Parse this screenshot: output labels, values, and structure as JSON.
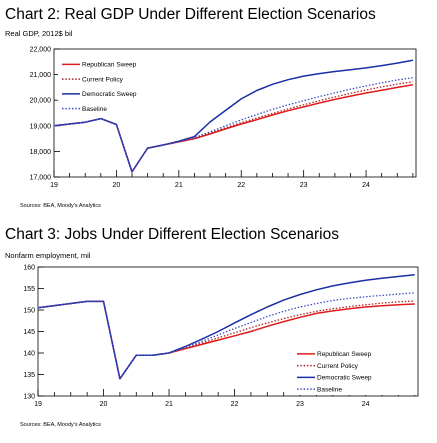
{
  "chart_data": [
    {
      "type": "line",
      "title": "Chart 2: Real GDP Under Different Election Scenarios",
      "subtitle": "Real GDP, 2012$ bil",
      "source": "Sources: BEA, Moody's Analytics",
      "x_tick_labels": [
        "19",
        "20",
        "21",
        "22",
        "23",
        "24"
      ],
      "ylim": [
        17000,
        22000
      ],
      "y_ticks": [
        "17,000",
        "18,000",
        "19,000",
        "20,000",
        "21,000",
        "22,000"
      ],
      "legend": "top-left",
      "grid": false,
      "x": [
        2019.0,
        2019.5,
        2019.75,
        2020.0,
        2020.25,
        2020.5,
        2020.75,
        2021.0,
        2021.25,
        2021.5,
        2021.75,
        2022.0,
        2022.25,
        2022.5,
        2022.75,
        2023.0,
        2023.25,
        2023.5,
        2023.75,
        2024.0,
        2024.25,
        2024.5,
        2024.75
      ],
      "series": [
        {
          "name": "Republican Sweep",
          "color": "#e01b1b",
          "dash": "solid",
          "values": [
            19000,
            19140,
            19280,
            19050,
            17200,
            18130,
            18250,
            18370,
            18500,
            18680,
            18880,
            19070,
            19240,
            19420,
            19590,
            19740,
            19890,
            20030,
            20160,
            20280,
            20390,
            20500,
            20600
          ]
        },
        {
          "name": "Current Policy",
          "color": "#b52020",
          "dash": "dotted",
          "values": [
            19000,
            19140,
            19280,
            19050,
            17200,
            18130,
            18250,
            18380,
            18520,
            18720,
            18920,
            19120,
            19300,
            19480,
            19660,
            19820,
            19980,
            20130,
            20270,
            20400,
            20520,
            20630,
            20720
          ]
        },
        {
          "name": "Democratic Sweep",
          "color": "#1a2ea6",
          "dash": "solid",
          "values": [
            19000,
            19140,
            19280,
            19050,
            17200,
            18130,
            18250,
            18400,
            18580,
            19150,
            19600,
            20050,
            20380,
            20620,
            20800,
            20940,
            21040,
            21120,
            21190,
            21260,
            21350,
            21450,
            21560
          ]
        },
        {
          "name": "Baseline",
          "color": "#4050c0",
          "dash": "dotted",
          "values": [
            19000,
            19140,
            19280,
            19050,
            17200,
            18130,
            18250,
            18380,
            18540,
            18760,
            19000,
            19230,
            19440,
            19640,
            19820,
            19980,
            20140,
            20290,
            20430,
            20560,
            20680,
            20790,
            20880
          ]
        }
      ]
    },
    {
      "type": "line",
      "title": "Chart 3: Jobs Under Different Election Scenarios",
      "subtitle": "Nonfarm employment, mil",
      "source": "Sources: BEA, Moody's Analytics",
      "x_tick_labels": [
        "19",
        "20",
        "21",
        "22",
        "23",
        "24"
      ],
      "ylim": [
        130,
        160
      ],
      "y_ticks": [
        "130",
        "135",
        "140",
        "145",
        "150",
        "155",
        "160"
      ],
      "legend": "bottom-right",
      "grid": false,
      "x": [
        2019.0,
        2019.5,
        2019.75,
        2020.0,
        2020.25,
        2020.5,
        2020.75,
        2021.0,
        2021.25,
        2021.5,
        2021.75,
        2022.0,
        2022.25,
        2022.5,
        2022.75,
        2023.0,
        2023.25,
        2023.5,
        2023.75,
        2024.0,
        2024.25,
        2024.5,
        2024.75
      ],
      "series": [
        {
          "name": "Republican Sweep",
          "color": "#e01b1b",
          "dash": "solid",
          "values": [
            150.5,
            151.5,
            152.0,
            152.0,
            134.0,
            139.5,
            139.5,
            140.0,
            141.0,
            142.0,
            143.0,
            144.0,
            145.0,
            146.2,
            147.3,
            148.3,
            149.2,
            149.8,
            150.3,
            150.7,
            151.0,
            151.2,
            151.4
          ]
        },
        {
          "name": "Current Policy",
          "color": "#b52020",
          "dash": "dotted",
          "values": [
            150.5,
            151.5,
            152.0,
            152.0,
            134.0,
            139.5,
            139.5,
            140.0,
            141.2,
            142.3,
            143.5,
            144.7,
            145.9,
            147.0,
            148.0,
            148.9,
            149.7,
            150.3,
            150.8,
            151.2,
            151.6,
            151.9,
            152.1
          ]
        },
        {
          "name": "Democratic Sweep",
          "color": "#1a2ea6",
          "dash": "solid",
          "values": [
            150.5,
            151.5,
            152.0,
            152.0,
            134.0,
            139.5,
            139.5,
            140.0,
            141.5,
            143.2,
            145.0,
            147.0,
            148.9,
            150.7,
            152.3,
            153.6,
            154.7,
            155.6,
            156.3,
            156.9,
            157.4,
            157.8,
            158.2
          ]
        },
        {
          "name": "Baseline",
          "color": "#4050c0",
          "dash": "dotted",
          "values": [
            150.5,
            151.5,
            152.0,
            152.0,
            134.0,
            139.5,
            139.5,
            140.0,
            141.3,
            142.7,
            144.2,
            145.7,
            147.1,
            148.5,
            149.7,
            150.7,
            151.5,
            152.2,
            152.7,
            153.1,
            153.4,
            153.7,
            154.0
          ]
        }
      ]
    }
  ]
}
